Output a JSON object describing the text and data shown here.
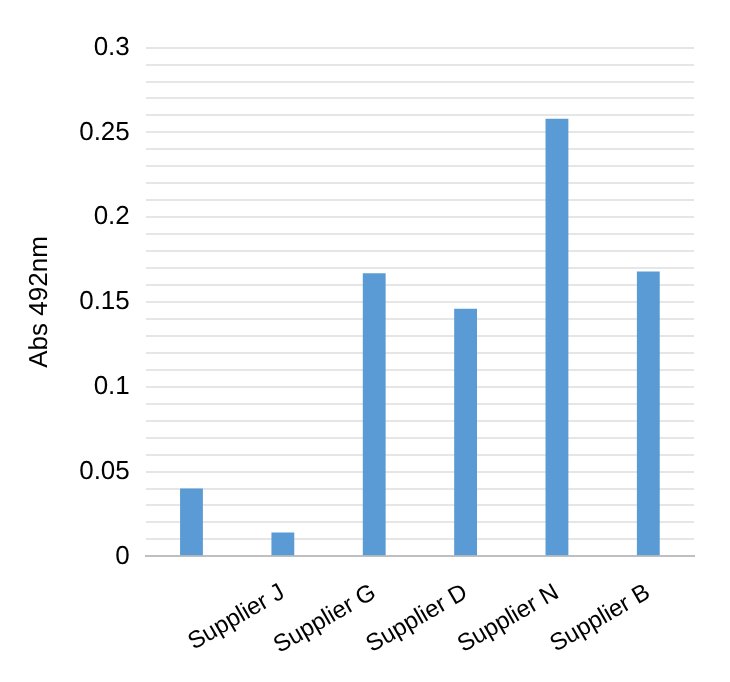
{
  "chart_data": {
    "type": "bar",
    "ylabel": "Abs 492nm",
    "categories": [
      null,
      "Supplier J",
      "Supplier G",
      "Supplier D",
      "Supplier N",
      "Supplier B"
    ],
    "values": [
      0.04,
      0.014,
      0.167,
      0.146,
      0.258,
      0.168
    ],
    "color": "#5b9bd5",
    "ylim": [
      0,
      0.3
    ],
    "yticks": [
      0,
      {
        "value": 0.01,
        "label": null
      },
      {
        "value": 0.02,
        "label": null
      },
      {
        "value": 0.03,
        "label": null
      },
      {
        "value": 0.04,
        "label": null
      },
      0.05,
      {
        "value": 0.06,
        "label": null
      },
      {
        "value": 0.07,
        "label": null
      },
      {
        "value": 0.08,
        "label": null
      },
      {
        "value": 0.09,
        "label": null
      },
      0.1,
      {
        "value": 0.11,
        "label": null
      },
      {
        "value": 0.12,
        "label": null
      },
      {
        "value": 0.13,
        "label": null
      },
      {
        "value": 0.14,
        "label": null
      },
      0.15,
      {
        "value": 0.16,
        "label": null
      },
      {
        "value": 0.17,
        "label": null
      },
      {
        "value": 0.18,
        "label": null
      },
      {
        "value": 0.19,
        "label": null
      },
      0.2,
      {
        "value": 0.21,
        "label": null
      },
      {
        "value": 0.22,
        "label": null
      },
      {
        "value": 0.23,
        "label": null
      },
      {
        "value": 0.24,
        "label": null
      },
      0.25,
      {
        "value": 0.26,
        "label": null
      },
      {
        "value": 0.27,
        "label": null
      },
      {
        "value": 0.28,
        "label": null
      },
      {
        "value": 0.29,
        "label": null
      },
      0.3
    ],
    "grid": "y",
    "legend": false
  }
}
